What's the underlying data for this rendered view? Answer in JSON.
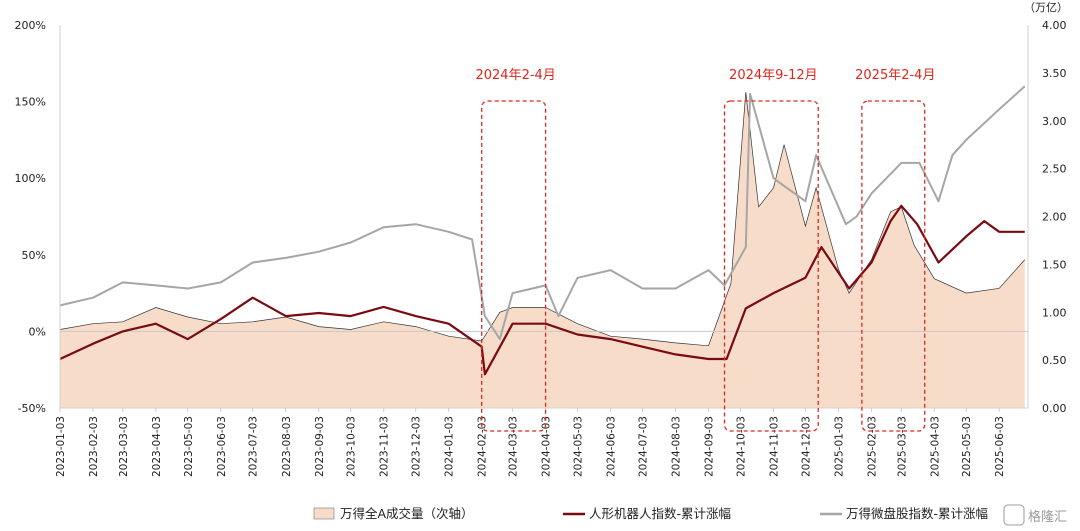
{
  "chart_data": {
    "type": "area",
    "right_axis_unit": "（万亿）",
    "left_ylim": [
      -50,
      200
    ],
    "left_ticks": [
      "-50%",
      "0%",
      "50%",
      "100%",
      "150%",
      "200%"
    ],
    "right_ylim": [
      0,
      4
    ],
    "right_ticks": [
      "0.00",
      "0.50",
      "1.00",
      "1.50",
      "2.00",
      "2.50",
      "3.00",
      "3.50",
      "4.00"
    ],
    "x_ticks": [
      "2023-01-03",
      "2023-02-03",
      "2023-03-03",
      "2023-04-03",
      "2023-05-03",
      "2023-06-03",
      "2023-07-03",
      "2023-08-03",
      "2023-09-03",
      "2023-10-03",
      "2023-11-03",
      "2023-12-03",
      "2024-01-03",
      "2024-02-03",
      "2024-03-03",
      "2024-04-03",
      "2024-05-03",
      "2024-06-03",
      "2024-07-03",
      "2024-08-03",
      "2024-09-03",
      "2024-10-03",
      "2024-11-03",
      "2024-12-03",
      "2025-01-03",
      "2025-02-03",
      "2025-03-03",
      "2025-04-03",
      "2025-05-03",
      "2025-06-03"
    ],
    "annotations": [
      {
        "label": "2024年2-4月",
        "start": "2024-02-03",
        "end": "2024-04-03"
      },
      {
        "label": "2024年9-12月",
        "start": "2024-09-18",
        "end": "2024-12-15"
      },
      {
        "label": "2025年2-4月",
        "start": "2025-01-25",
        "end": "2025-03-25"
      }
    ],
    "series": [
      {
        "name": "万得全A成交量（次轴）",
        "axis": "right",
        "style": "area",
        "color": "#f8dcca",
        "edge_color": "#333333",
        "x": [
          "2023-01-03",
          "2023-02-03",
          "2023-03-03",
          "2023-04-03",
          "2023-05-03",
          "2023-06-03",
          "2023-07-03",
          "2023-08-03",
          "2023-09-03",
          "2023-10-03",
          "2023-11-03",
          "2023-12-03",
          "2024-01-03",
          "2024-02-03",
          "2024-02-20",
          "2024-03-03",
          "2024-04-03",
          "2024-05-03",
          "2024-06-03",
          "2024-07-03",
          "2024-08-03",
          "2024-09-03",
          "2024-09-24",
          "2024-10-08",
          "2024-10-20",
          "2024-11-03",
          "2024-11-13",
          "2024-12-03",
          "2024-12-13",
          "2025-01-03",
          "2025-01-13",
          "2025-02-03",
          "2025-02-21",
          "2025-03-03",
          "2025-03-15",
          "2025-04-03",
          "2025-05-03",
          "2025-06-03",
          "2025-06-27"
        ],
        "values": [
          0.82,
          0.88,
          0.9,
          1.05,
          0.95,
          0.88,
          0.9,
          0.95,
          0.85,
          0.82,
          0.9,
          0.85,
          0.75,
          0.7,
          1.0,
          1.05,
          1.05,
          0.88,
          0.75,
          0.72,
          0.68,
          0.65,
          1.3,
          3.3,
          2.1,
          2.3,
          2.75,
          1.9,
          2.3,
          1.45,
          1.2,
          1.55,
          2.05,
          2.1,
          1.7,
          1.35,
          1.2,
          1.25,
          1.55
        ]
      },
      {
        "name": "人形机器人指数-累计涨幅",
        "axis": "left",
        "style": "line",
        "color": "#7a0b12",
        "x": [
          "2023-01-03",
          "2023-02-03",
          "2023-03-03",
          "2023-04-03",
          "2023-05-03",
          "2023-06-03",
          "2023-07-03",
          "2023-08-03",
          "2023-09-03",
          "2023-10-03",
          "2023-11-03",
          "2023-12-03",
          "2024-01-03",
          "2024-02-03",
          "2024-02-06",
          "2024-03-03",
          "2024-04-03",
          "2024-05-03",
          "2024-06-03",
          "2024-07-03",
          "2024-08-03",
          "2024-09-03",
          "2024-09-20",
          "2024-10-08",
          "2024-11-03",
          "2024-12-03",
          "2024-12-18",
          "2025-01-13",
          "2025-02-03",
          "2025-02-21",
          "2025-03-03",
          "2025-03-18",
          "2025-04-07",
          "2025-05-03",
          "2025-05-20",
          "2025-06-03",
          "2025-06-27"
        ],
        "values": [
          -18,
          -8,
          0,
          5,
          -5,
          8,
          22,
          10,
          12,
          10,
          16,
          10,
          5,
          -10,
          -28,
          5,
          5,
          -2,
          -5,
          -10,
          -15,
          -18,
          -18,
          15,
          25,
          35,
          55,
          28,
          45,
          72,
          82,
          70,
          45,
          62,
          72,
          65,
          65
        ]
      },
      {
        "name": "万得微盘股指数-累计涨幅",
        "axis": "left",
        "style": "line",
        "color": "#a6a6a6",
        "x": [
          "2023-01-03",
          "2023-02-03",
          "2023-03-03",
          "2023-04-03",
          "2023-05-03",
          "2023-06-03",
          "2023-07-03",
          "2023-08-03",
          "2023-09-03",
          "2023-10-03",
          "2023-11-03",
          "2023-12-03",
          "2024-01-03",
          "2024-01-25",
          "2024-02-06",
          "2024-02-20",
          "2024-03-03",
          "2024-04-03",
          "2024-04-15",
          "2024-05-03",
          "2024-06-03",
          "2024-07-03",
          "2024-08-03",
          "2024-09-03",
          "2024-09-18",
          "2024-10-08",
          "2024-10-12",
          "2024-11-03",
          "2024-11-13",
          "2024-12-03",
          "2024-12-13",
          "2025-01-10",
          "2025-01-20",
          "2025-02-03",
          "2025-03-03",
          "2025-03-20",
          "2025-04-07",
          "2025-04-20",
          "2025-05-03",
          "2025-06-03",
          "2025-06-27"
        ],
        "values": [
          17,
          22,
          32,
          30,
          28,
          32,
          45,
          48,
          52,
          58,
          68,
          70,
          65,
          60,
          10,
          -5,
          25,
          30,
          10,
          35,
          40,
          28,
          28,
          40,
          30,
          55,
          155,
          100,
          95,
          85,
          115,
          70,
          75,
          90,
          110,
          110,
          85,
          115,
          125,
          145,
          160
        ]
      }
    ],
    "legend": [
      {
        "label": "万得全A成交量（次轴）"
      },
      {
        "label": "人形机器人指数-累计涨幅"
      },
      {
        "label": "万得微盘股指数-累计涨幅"
      }
    ],
    "watermark": "格隆汇"
  }
}
